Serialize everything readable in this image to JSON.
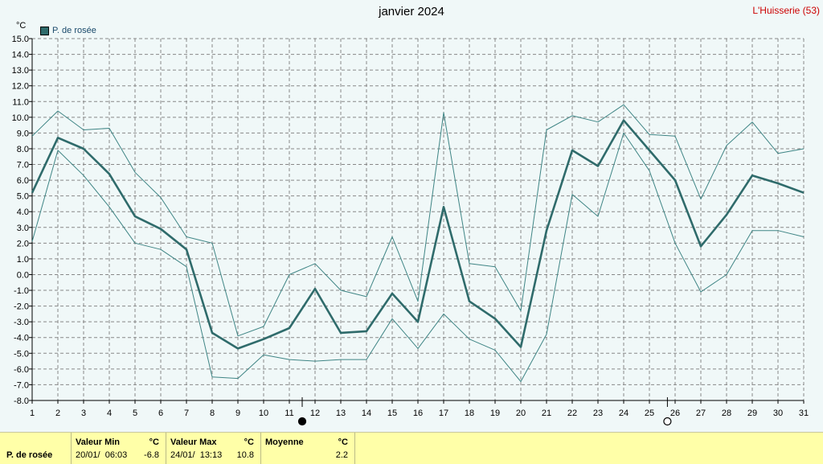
{
  "title": "janvier 2024",
  "station": "L'Huisserie (53)",
  "unit": "°C",
  "legend": {
    "label": "P. de rosée",
    "color": "#2f6b6b"
  },
  "chart_data": {
    "type": "line",
    "title": "janvier 2024",
    "ylabel": "°C",
    "x": [
      1,
      2,
      3,
      4,
      5,
      6,
      7,
      8,
      9,
      10,
      11,
      12,
      13,
      14,
      15,
      16,
      17,
      18,
      19,
      20,
      21,
      22,
      23,
      24,
      25,
      26,
      27,
      28,
      29,
      30,
      31
    ],
    "ylim": [
      -8.0,
      15.0
    ],
    "yticks": [
      -8.0,
      -7.0,
      -6.0,
      -5.0,
      -4.0,
      -3.0,
      -2.0,
      -1.0,
      0.0,
      1.0,
      2.0,
      3.0,
      4.0,
      5.0,
      6.0,
      7.0,
      8.0,
      9.0,
      10.0,
      11.0,
      12.0,
      13.0,
      14.0,
      15.0
    ],
    "grid": true,
    "markers": [
      {
        "x": 11.5,
        "symbol": "filled-circle"
      },
      {
        "x": 25.7,
        "symbol": "open-circle"
      }
    ],
    "series": [
      {
        "name": "P. de rosée",
        "role": "mean",
        "values": [
          5.2,
          8.7,
          8.0,
          6.4,
          3.7,
          2.9,
          1.6,
          -3.7,
          -4.7,
          -4.1,
          -3.4,
          -0.9,
          -3.7,
          -3.6,
          -1.2,
          -3.0,
          4.3,
          -1.7,
          -2.8,
          -4.6,
          2.8,
          7.9,
          6.9,
          9.8,
          7.9,
          6.0,
          1.8,
          3.8,
          6.3,
          5.8,
          5.2
        ]
      },
      {
        "name": "max",
        "role": "max",
        "values": [
          8.8,
          10.4,
          9.2,
          9.3,
          6.5,
          4.9,
          2.4,
          2.0,
          -3.9,
          -3.3,
          0.0,
          0.7,
          -1.0,
          -1.4,
          2.4,
          -1.7,
          10.3,
          0.7,
          0.5,
          -2.3,
          9.2,
          10.1,
          9.7,
          10.8,
          8.9,
          8.8,
          4.8,
          8.2,
          9.7,
          7.7,
          8.0
        ]
      },
      {
        "name": "min",
        "role": "min",
        "values": [
          2.1,
          7.9,
          6.3,
          4.3,
          2.0,
          1.6,
          0.5,
          -6.5,
          -6.6,
          -5.1,
          -5.4,
          -5.5,
          -5.4,
          -5.4,
          -2.8,
          -4.7,
          -2.5,
          -4.1,
          -4.8,
          -6.8,
          -3.8,
          5.1,
          3.7,
          9.0,
          6.6,
          2.0,
          -1.1,
          0.0,
          2.8,
          2.8,
          2.4
        ]
      }
    ]
  },
  "summary": {
    "row_label": "P. de rosée",
    "min": {
      "header": "Valeur Min",
      "unit": "°C",
      "datetime": "20/01/  06:03",
      "value": "-6.8"
    },
    "max": {
      "header": "Valeur Max",
      "unit": "°C",
      "datetime": "24/01/  13:13",
      "value": "10.8"
    },
    "avg": {
      "header": "Moyenne",
      "unit": "°C",
      "value": "2.2"
    }
  }
}
